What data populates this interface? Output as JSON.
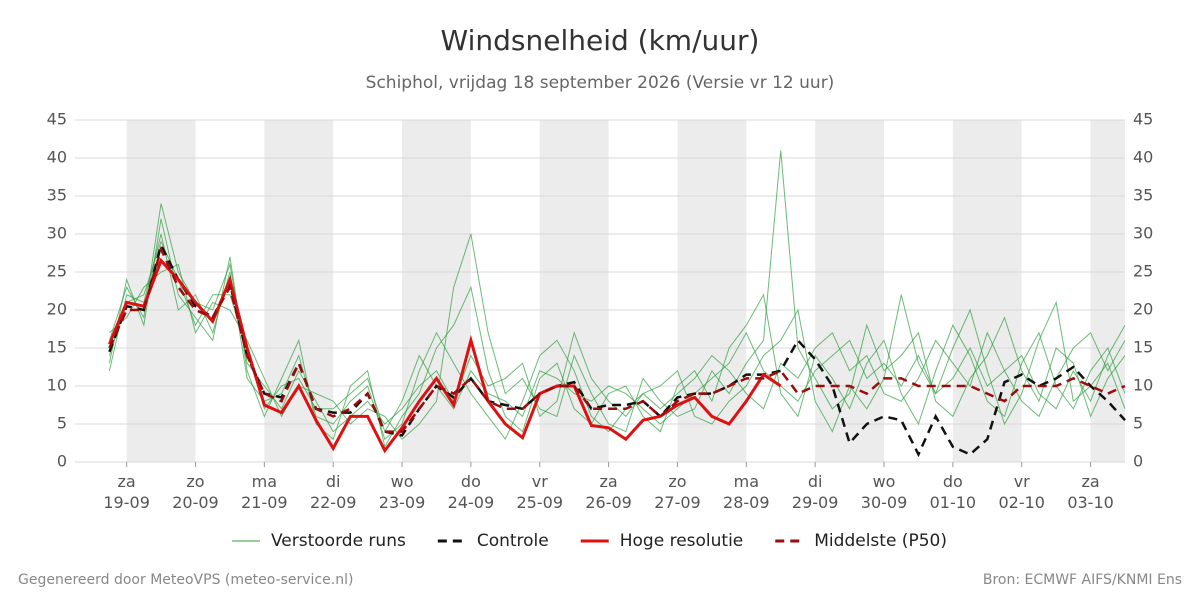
{
  "chart_data": {
    "type": "line",
    "title": "Windsnelheid (km/uur)",
    "subtitle": "Schiphol, vrijdag 18 september 2026 (Versie vr 12 uur)",
    "footer_left": "Gegenereerd door MeteoVPS (meteo-service.nl)",
    "footer_right": "Bron: ECMWF AIFS/KNMI Ens",
    "x": [
      18,
      24,
      30,
      36,
      42,
      48,
      54,
      60,
      66,
      72,
      78,
      84,
      90,
      96,
      102,
      108,
      114,
      120,
      126,
      132,
      138,
      144,
      150,
      156,
      162,
      168,
      174,
      180,
      186,
      192,
      198,
      204,
      210,
      216,
      222,
      228,
      234,
      240,
      246,
      252,
      258,
      264,
      270,
      276,
      282,
      288,
      294,
      300,
      306,
      312,
      318,
      324,
      330,
      336,
      342,
      348,
      354,
      360,
      366,
      372
    ],
    "xlim": [
      6,
      372
    ],
    "xticks": [
      {
        "value": 24,
        "label": "za\n19-09"
      },
      {
        "value": 48,
        "label": "zo\n20-09"
      },
      {
        "value": 72,
        "label": "ma\n21-09"
      },
      {
        "value": 96,
        "label": "di\n22-09"
      },
      {
        "value": 120,
        "label": "wo\n23-09"
      },
      {
        "value": 144,
        "label": "do\n24-09"
      },
      {
        "value": 168,
        "label": "vr\n25-09"
      },
      {
        "value": 192,
        "label": "za\n26-09"
      },
      {
        "value": 216,
        "label": "zo\n27-09"
      },
      {
        "value": 240,
        "label": "ma\n28-09"
      },
      {
        "value": 264,
        "label": "di\n29-09"
      },
      {
        "value": 288,
        "label": "wo\n30-09"
      },
      {
        "value": 312,
        "label": "do\n01-10"
      },
      {
        "value": 336,
        "label": "vr\n02-10"
      },
      {
        "value": 360,
        "label": "za\n03-10"
      }
    ],
    "shaded_bands": [
      [
        24,
        48
      ],
      [
        72,
        96
      ],
      [
        120,
        144
      ],
      [
        168,
        192
      ],
      [
        216,
        240
      ],
      [
        264,
        288
      ],
      [
        312,
        336
      ],
      [
        360,
        372
      ]
    ],
    "ylim": [
      0,
      45
    ],
    "yticks": [
      0,
      5,
      10,
      15,
      20,
      25,
      30,
      35,
      40,
      45
    ],
    "y2lim": [
      0,
      45
    ],
    "y2ticks": [
      0,
      5,
      10,
      15,
      20,
      25,
      30,
      35,
      40,
      45
    ],
    "grid": true,
    "ensemble": {
      "name": "Verstoorde runs",
      "color": "#2e9e3e",
      "members": [
        [
          13,
          24,
          18,
          32,
          22,
          19,
          16,
          27,
          12,
          6,
          11,
          16,
          5,
          3,
          10,
          12,
          2,
          6,
          9,
          15,
          18,
          23,
          12,
          6,
          4,
          11,
          13,
          7,
          5,
          9,
          10,
          6,
          4,
          10,
          12,
          8,
          15,
          18,
          22,
          9,
          6,
          14,
          11,
          7,
          13,
          16,
          9,
          5,
          12,
          18,
          14,
          8,
          6,
          13,
          17,
          10,
          7,
          12,
          15,
          9
        ],
        [
          17,
          19,
          23,
          25,
          26,
          17,
          21,
          20,
          16,
          11,
          6,
          10,
          9,
          8,
          5,
          7,
          6,
          3,
          5,
          8,
          23,
          30,
          17,
          9,
          11,
          7,
          6,
          14,
          9,
          5,
          4,
          11,
          8,
          6,
          7,
          12,
          9,
          13,
          16,
          41,
          15,
          11,
          7,
          9,
          18,
          12,
          14,
          17,
          8,
          6,
          11,
          14,
          19,
          12,
          8,
          15,
          13,
          6,
          11,
          14
        ],
        [
          12,
          22,
          21,
          30,
          20,
          22,
          17,
          25,
          11,
          8,
          9,
          14,
          6,
          5,
          8,
          10,
          3,
          5,
          12,
          17,
          13,
          9,
          6,
          3,
          8,
          14,
          16,
          12,
          6,
          4,
          7,
          9,
          10,
          12,
          6,
          5,
          8,
          10,
          14,
          16,
          20,
          8,
          4,
          10,
          7,
          11,
          22,
          13,
          9,
          15,
          20,
          12,
          5,
          9,
          16,
          21,
          8,
          10,
          13,
          7
        ],
        [
          16,
          23,
          19,
          34,
          25,
          21,
          20,
          26,
          13,
          10,
          7,
          12,
          8,
          4,
          6,
          8,
          5,
          7,
          10,
          12,
          8,
          14,
          10,
          11,
          13,
          6,
          8,
          17,
          11,
          8,
          6,
          9,
          7,
          9,
          11,
          14,
          12,
          9,
          7,
          13,
          11,
          15,
          17,
          12,
          14,
          9,
          8,
          11,
          16,
          13,
          10,
          17,
          12,
          8,
          6,
          11,
          15,
          17,
          12,
          16
        ],
        [
          14,
          21,
          22,
          29,
          24,
          18,
          22,
          22,
          15,
          7,
          10,
          11,
          7,
          7,
          9,
          11,
          4,
          8,
          14,
          10,
          7,
          12,
          9,
          8,
          6,
          12,
          11,
          9,
          8,
          10,
          9,
          7,
          5,
          7,
          9,
          11,
          13,
          17,
          12,
          10,
          8,
          12,
          14,
          16,
          11,
          13,
          10,
          14,
          9,
          11,
          15,
          10,
          12,
          14,
          9,
          7,
          12,
          8,
          14,
          18
        ]
      ]
    },
    "series": [
      {
        "name": "Controle",
        "color": "#111111",
        "dash": true,
        "values": [
          14.5,
          20.5,
          20,
          28.5,
          24,
          20.5,
          19,
          23.5,
          14,
          9,
          8.5,
          13,
          7,
          6.5,
          6.5,
          9,
          4,
          3.5,
          7,
          10,
          8.5,
          11,
          8,
          7.5,
          7,
          9,
          10,
          10.5,
          7,
          7.5,
          7.5,
          8,
          6,
          8.5,
          9,
          9,
          10,
          11.5,
          11.5,
          12,
          16,
          13.5,
          10,
          2.5,
          5,
          6,
          5.5,
          1,
          6,
          2,
          1,
          3,
          10.5,
          11.5,
          10,
          11,
          12.5,
          10,
          8,
          5.5
        ]
      },
      {
        "name": "Hoge resolutie",
        "color": "#dd1111",
        "dash": false,
        "values": [
          15.5,
          21,
          20.5,
          26.5,
          24,
          21,
          18.5,
          24,
          15,
          7.5,
          6.5,
          10,
          5.5,
          1.8,
          6,
          6,
          1.5,
          4.5,
          8,
          11,
          7.5,
          16,
          8,
          5,
          3.2,
          9,
          10,
          10,
          4.8,
          4.5,
          3,
          5.5,
          6,
          7.5,
          8.5,
          6,
          5,
          8,
          11.5,
          10,
          null,
          null,
          null,
          null,
          null,
          null,
          null,
          null,
          null,
          null,
          null,
          null,
          null,
          null,
          null,
          null,
          null,
          null,
          null,
          null
        ]
      },
      {
        "name": "Middelste (P50)",
        "color": "#9b0d0d",
        "dash": true,
        "values": [
          15,
          20,
          20,
          28,
          23,
          20,
          19,
          23,
          14,
          9,
          8,
          13,
          7,
          6,
          7,
          9,
          4,
          4,
          7,
          10,
          9,
          11,
          8,
          7,
          7,
          9,
          10,
          10,
          7,
          7,
          7,
          8,
          6,
          8,
          9,
          9,
          10,
          11,
          11,
          12,
          9,
          10,
          10,
          10,
          9,
          11,
          11,
          10,
          10,
          10,
          10,
          9,
          8,
          10,
          10,
          10,
          11,
          10,
          9,
          10
        ]
      }
    ]
  }
}
